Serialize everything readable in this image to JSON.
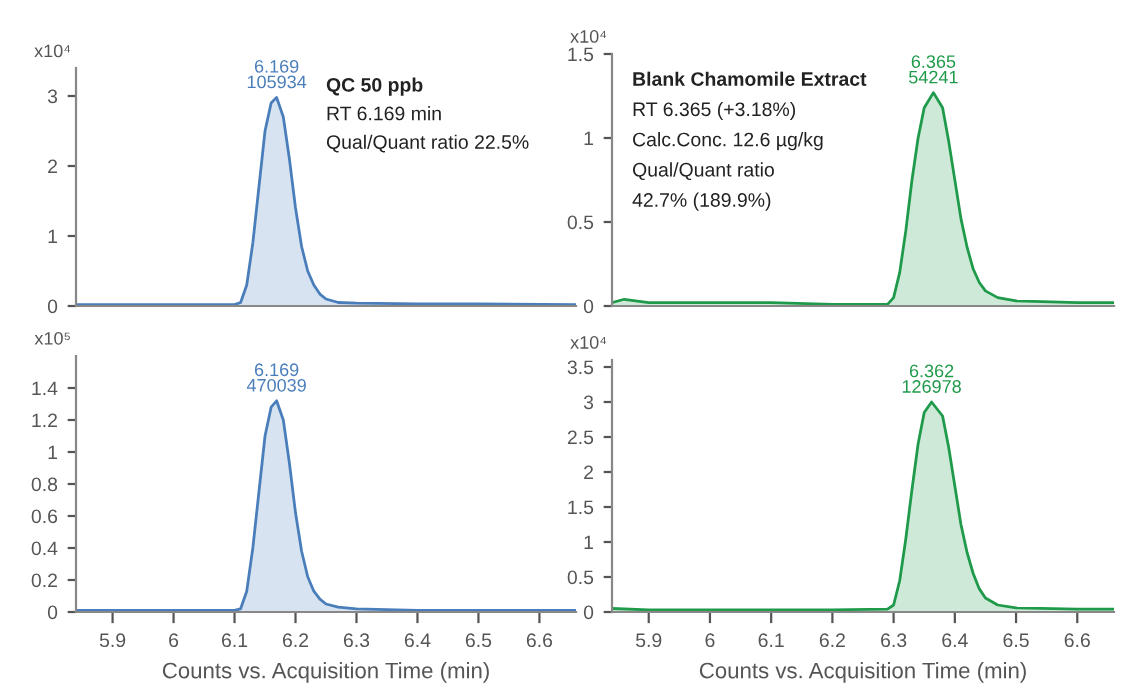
{
  "chart_data": [
    {
      "type": "area",
      "ylabel": "x10⁴",
      "xlim": [
        5.84,
        6.66
      ],
      "xticks": [
        5.9,
        6,
        6.1,
        6.2,
        6.3,
        6.4,
        6.5,
        6.6
      ],
      "ylim": [
        0,
        3.4
      ],
      "yticks": [
        0,
        1,
        2,
        3
      ],
      "tick_labels": "y",
      "grid": false,
      "legend": false,
      "x": [
        5.84,
        6.0,
        6.1,
        6.11,
        6.12,
        6.13,
        6.14,
        6.15,
        6.16,
        6.169,
        6.18,
        6.19,
        6.2,
        6.21,
        6.22,
        6.23,
        6.24,
        6.25,
        6.27,
        6.3,
        6.4,
        6.5,
        6.66
      ],
      "series": [
        {
          "color": "#4a7ebb",
          "values": [
            0.02,
            0.02,
            0.02,
            0.05,
            0.3,
            0.9,
            1.7,
            2.5,
            2.9,
            2.98,
            2.7,
            2.1,
            1.4,
            0.85,
            0.5,
            0.3,
            0.17,
            0.1,
            0.05,
            0.04,
            0.03,
            0.03,
            0.02
          ]
        }
      ],
      "annotations": [
        {
          "text": "6.169\n105934",
          "x": 6.169,
          "y": 2.98
        },
        "QC 50 ppb",
        "RT 6.169 min",
        "Qual/Quant ratio 22.5%"
      ]
    },
    {
      "type": "area",
      "ylabel": "x10⁴",
      "xlim": [
        5.84,
        6.66
      ],
      "xticks": [
        5.9,
        6,
        6.1,
        6.2,
        6.3,
        6.4,
        6.5,
        6.6
      ],
      "ylim": [
        0,
        1.5
      ],
      "yticks": [
        0,
        0.5,
        1,
        1.5
      ],
      "tick_labels": "y",
      "grid": false,
      "legend": false,
      "x": [
        5.84,
        5.86,
        5.9,
        6.0,
        6.1,
        6.2,
        6.29,
        6.3,
        6.31,
        6.32,
        6.33,
        6.34,
        6.35,
        6.365,
        6.38,
        6.39,
        6.4,
        6.41,
        6.42,
        6.43,
        6.44,
        6.45,
        6.47,
        6.5,
        6.6,
        6.66
      ],
      "series": [
        {
          "color": "#1f9a4a",
          "values": [
            0.02,
            0.04,
            0.02,
            0.02,
            0.02,
            0.01,
            0.01,
            0.05,
            0.2,
            0.45,
            0.75,
            1.0,
            1.18,
            1.27,
            1.18,
            0.98,
            0.75,
            0.52,
            0.35,
            0.22,
            0.14,
            0.09,
            0.05,
            0.03,
            0.02,
            0.02
          ]
        }
      ],
      "annotations": [
        {
          "text": "6.365\n54241",
          "x": 6.365,
          "y": 1.27
        },
        "Blank Chamomile Extract",
        "RT 6.365 (+3.18%)",
        "Calc.Conc. 12.6 µg/kg",
        "Qual/Quant ratio",
        "42.7% (189.9%)"
      ]
    },
    {
      "type": "area",
      "ylabel": "x10⁵",
      "xlabel": "Counts vs. Acquisition Time (min)",
      "xlim": [
        5.84,
        6.66
      ],
      "xticks": [
        5.9,
        6,
        6.1,
        6.2,
        6.3,
        6.4,
        6.5,
        6.6
      ],
      "ylim": [
        0,
        1.6
      ],
      "yticks": [
        0,
        0.2,
        0.4,
        0.6,
        0.8,
        1,
        1.2,
        1.4
      ],
      "grid": false,
      "legend": false,
      "x": [
        5.84,
        6.0,
        6.1,
        6.11,
        6.12,
        6.13,
        6.14,
        6.15,
        6.16,
        6.169,
        6.18,
        6.19,
        6.2,
        6.21,
        6.22,
        6.23,
        6.24,
        6.25,
        6.27,
        6.3,
        6.4,
        6.5,
        6.66
      ],
      "series": [
        {
          "color": "#4a7ebb",
          "values": [
            0.01,
            0.01,
            0.01,
            0.02,
            0.13,
            0.4,
            0.75,
            1.1,
            1.28,
            1.32,
            1.2,
            0.93,
            0.62,
            0.38,
            0.22,
            0.13,
            0.08,
            0.05,
            0.03,
            0.02,
            0.01,
            0.01,
            0.01
          ]
        }
      ],
      "annotations": [
        {
          "text": "6.169\n470039",
          "x": 6.169,
          "y": 1.32
        }
      ]
    },
    {
      "type": "area",
      "ylabel": "x10⁴",
      "xlabel": "Counts vs. Acquisition Time (min)",
      "xlim": [
        5.84,
        6.66
      ],
      "xticks": [
        5.9,
        6,
        6.1,
        6.2,
        6.3,
        6.4,
        6.5,
        6.6
      ],
      "ylim": [
        0,
        3.6
      ],
      "yticks": [
        0,
        0.5,
        1,
        1.5,
        2,
        2.5,
        3,
        3.5
      ],
      "grid": false,
      "legend": false,
      "x": [
        5.84,
        5.9,
        6.0,
        6.1,
        6.2,
        6.29,
        6.3,
        6.31,
        6.32,
        6.33,
        6.34,
        6.35,
        6.362,
        6.38,
        6.39,
        6.4,
        6.41,
        6.42,
        6.43,
        6.44,
        6.45,
        6.47,
        6.5,
        6.6,
        6.66
      ],
      "series": [
        {
          "color": "#1f9a4a",
          "values": [
            0.05,
            0.03,
            0.03,
            0.03,
            0.03,
            0.04,
            0.1,
            0.45,
            1.05,
            1.75,
            2.4,
            2.85,
            3.0,
            2.8,
            2.35,
            1.8,
            1.25,
            0.85,
            0.55,
            0.33,
            0.2,
            0.1,
            0.06,
            0.04,
            0.04
          ]
        }
      ],
      "annotations": [
        {
          "text": "6.362\n126978",
          "x": 6.362,
          "y": 3.0
        }
      ]
    }
  ]
}
